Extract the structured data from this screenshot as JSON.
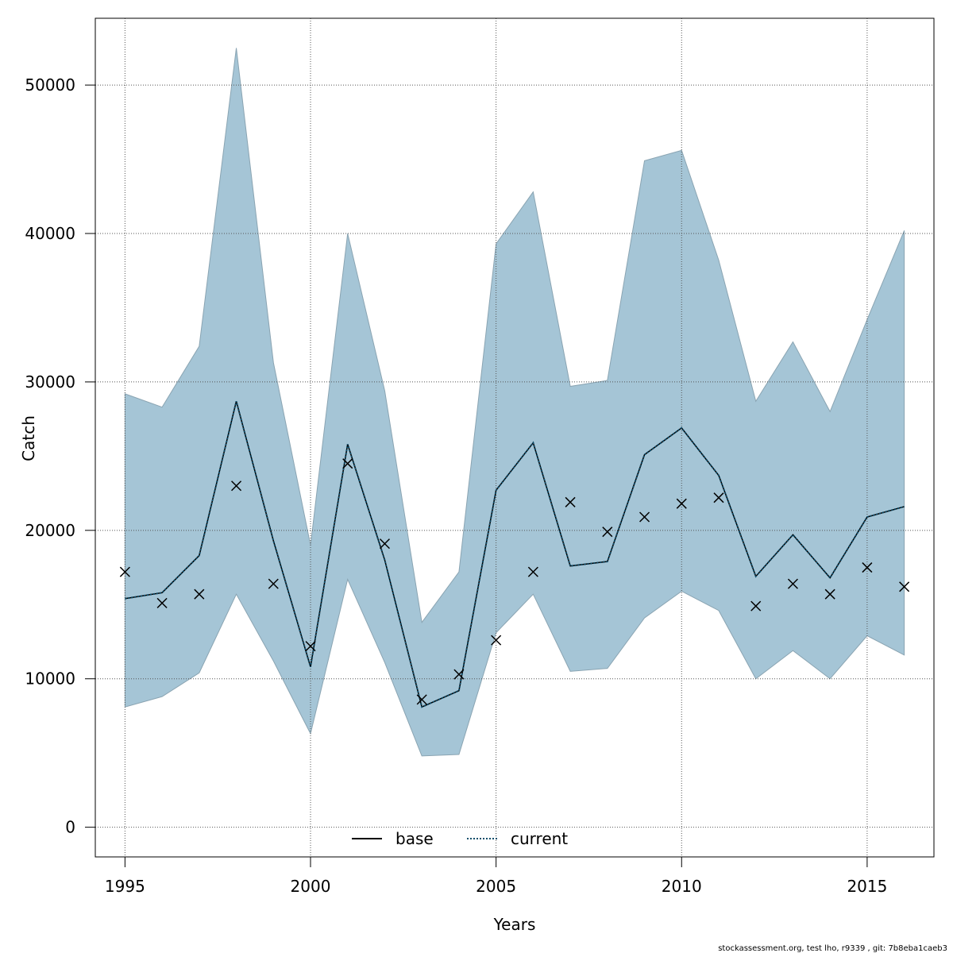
{
  "chart_data": {
    "type": "line",
    "title": "",
    "xlabel": "Years",
    "ylabel": "Catch",
    "xlim": [
      1994.2,
      2016.8
    ],
    "ylim": [
      -2000,
      54500
    ],
    "x_ticks": [
      1995,
      2000,
      2005,
      2010,
      2015
    ],
    "y_ticks": [
      0,
      10000,
      20000,
      30000,
      40000,
      50000
    ],
    "grid": true,
    "legend_position": "bottom-center",
    "x": [
      1995,
      1996,
      1997,
      1998,
      1999,
      2000,
      2001,
      2002,
      2003,
      2004,
      2005,
      2006,
      2007,
      2008,
      2009,
      2010,
      2011,
      2012,
      2013,
      2014,
      2015,
      2016
    ],
    "band": {
      "upper": [
        29200,
        28300,
        32400,
        52500,
        31300,
        19000,
        40000,
        29400,
        13800,
        17200,
        39300,
        42800,
        29700,
        30100,
        44900,
        45600,
        38200,
        28700,
        32700,
        28000,
        34200,
        40200
      ],
      "lower": [
        8100,
        8800,
        10400,
        15700,
        11200,
        6300,
        16700,
        11100,
        4800,
        4900,
        13100,
        15700,
        10500,
        10700,
        14100,
        15900,
        14600,
        10000,
        11900,
        10000,
        12900,
        11600
      ],
      "color": "#a5c5d6"
    },
    "series": [
      {
        "name": "base",
        "style": "solid",
        "color": "#000000",
        "values": [
          15400,
          15800,
          18300,
          28700,
          19300,
          10800,
          25800,
          18000,
          8100,
          9200,
          22700,
          25900,
          17600,
          17900,
          25100,
          26900,
          23700,
          16900,
          19700,
          16800,
          20900,
          21600
        ]
      },
      {
        "name": "current",
        "style": "dotted",
        "color": "#104e6b",
        "values": [
          15400,
          15800,
          18300,
          28700,
          19300,
          10800,
          25800,
          18000,
          8100,
          9200,
          22700,
          25900,
          17600,
          17900,
          25100,
          26900,
          23700,
          16900,
          19700,
          16800,
          20900,
          21600
        ]
      }
    ],
    "observed": {
      "marker": "x",
      "values": [
        17200,
        15100,
        15700,
        23000,
        16400,
        12200,
        24500,
        19100,
        8600,
        10300,
        12600,
        17200,
        21900,
        19900,
        20900,
        21800,
        22200,
        14900,
        16400,
        15700,
        17500,
        16200
      ]
    },
    "footer": "stockassessment.org, test  lho, r9339 , git: 7b8eba1caeb3"
  }
}
